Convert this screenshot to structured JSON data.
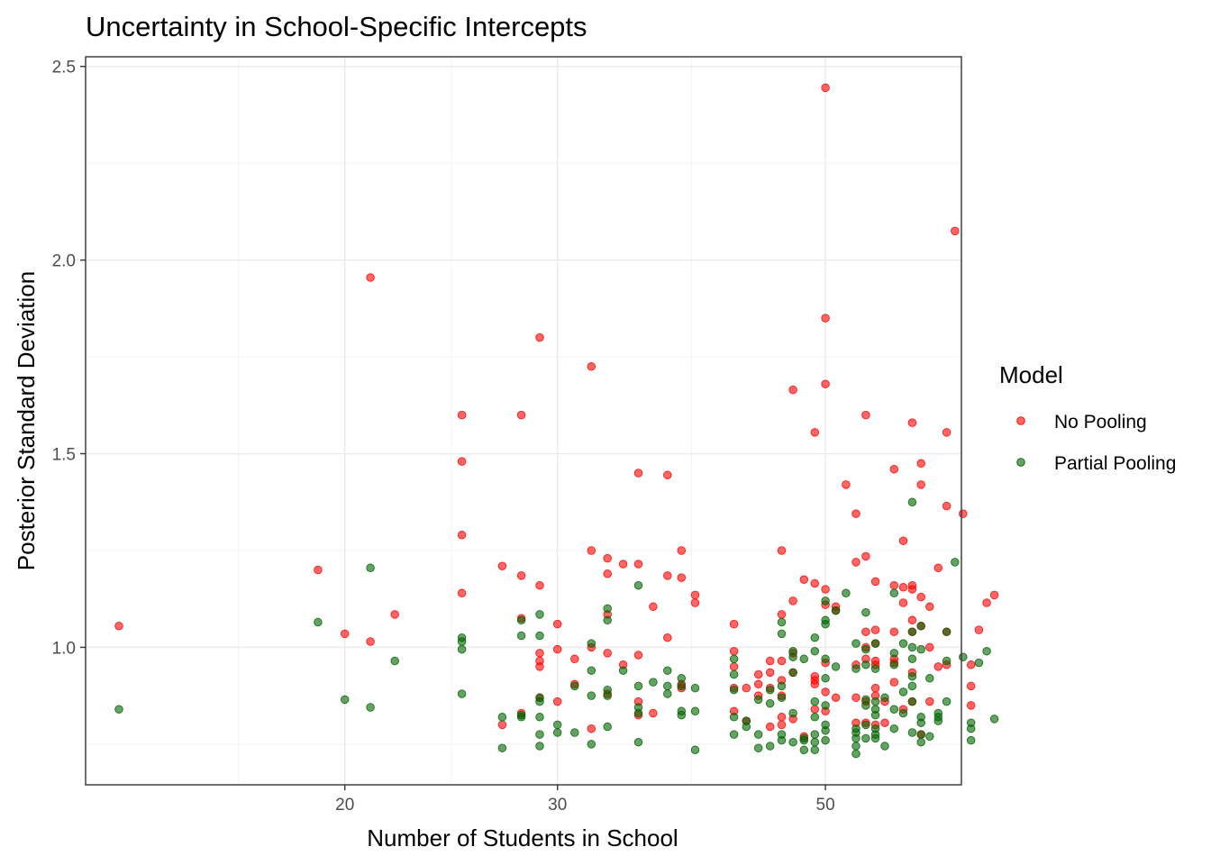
{
  "chart_data": {
    "type": "scatter",
    "title": "Uncertainty in School-Specific Intercepts",
    "xlabel": "Number of Students in School",
    "ylabel": "Posterior Standard Deviation",
    "x_scale": "log10",
    "xlim": [
      12.2,
      64.8
    ],
    "ylim": [
      0.645,
      2.525
    ],
    "x_ticks": [
      20,
      30,
      50
    ],
    "x_tick_labels": [
      "20",
      "30",
      "50"
    ],
    "y_ticks": [
      1.0,
      1.5,
      2.0,
      2.5
    ],
    "y_tick_labels": [
      "1.0",
      "1.5",
      "2.0",
      "2.5"
    ],
    "legend": {
      "title": "Model",
      "position": "right"
    },
    "series": [
      {
        "name": "No Pooling",
        "color": "#ff0000",
        "points": [
          [
            13,
            1.055
          ],
          [
            19,
            1.2
          ],
          [
            20,
            1.035
          ],
          [
            21,
            1.955
          ],
          [
            21,
            1.015
          ],
          [
            22,
            1.085
          ],
          [
            25,
            1.6
          ],
          [
            25,
            1.48
          ],
          [
            25,
            1.29
          ],
          [
            25,
            1.14
          ],
          [
            27,
            1.21
          ],
          [
            27,
            0.8
          ],
          [
            28,
            1.6
          ],
          [
            28,
            1.185
          ],
          [
            28,
            1.075
          ],
          [
            28,
            0.83
          ],
          [
            29,
            1.8
          ],
          [
            29,
            1.16
          ],
          [
            29,
            0.985
          ],
          [
            29,
            0.965
          ],
          [
            29,
            0.95
          ],
          [
            29,
            0.87
          ],
          [
            30,
            1.06
          ],
          [
            30,
            0.995
          ],
          [
            30,
            0.86
          ],
          [
            31,
            0.97
          ],
          [
            31,
            0.905
          ],
          [
            32,
            1.725
          ],
          [
            32,
            1.25
          ],
          [
            32,
            1.0
          ],
          [
            32,
            0.79
          ],
          [
            33,
            1.23
          ],
          [
            33,
            1.19
          ],
          [
            33,
            1.085
          ],
          [
            33,
            0.985
          ],
          [
            33,
            0.88
          ],
          [
            34,
            1.215
          ],
          [
            34,
            0.955
          ],
          [
            35,
            1.45
          ],
          [
            35,
            1.215
          ],
          [
            35,
            0.98
          ],
          [
            35,
            0.86
          ],
          [
            35,
            0.825
          ],
          [
            36,
            1.105
          ],
          [
            36,
            0.83
          ],
          [
            37,
            1.445
          ],
          [
            37,
            1.185
          ],
          [
            37,
            1.025
          ],
          [
            38,
            1.25
          ],
          [
            38,
            1.18
          ],
          [
            38,
            0.905
          ],
          [
            38,
            0.895
          ],
          [
            39,
            1.135
          ],
          [
            39,
            1.115
          ],
          [
            42,
            1.06
          ],
          [
            42,
            0.99
          ],
          [
            42,
            0.95
          ],
          [
            42,
            0.895
          ],
          [
            42,
            0.835
          ],
          [
            43,
            0.895
          ],
          [
            43,
            0.81
          ],
          [
            44,
            0.93
          ],
          [
            44,
            0.905
          ],
          [
            44,
            0.875
          ],
          [
            45,
            0.965
          ],
          [
            45,
            0.935
          ],
          [
            45,
            0.895
          ],
          [
            45,
            0.795
          ],
          [
            46,
            1.25
          ],
          [
            46,
            1.085
          ],
          [
            46,
            0.965
          ],
          [
            46,
            0.915
          ],
          [
            46,
            0.875
          ],
          [
            46,
            0.82
          ],
          [
            46,
            0.8
          ],
          [
            47,
            1.665
          ],
          [
            47,
            1.12
          ],
          [
            47,
            0.985
          ],
          [
            47,
            0.935
          ],
          [
            47,
            0.815
          ],
          [
            48,
            1.175
          ],
          [
            48,
            0.77
          ],
          [
            49,
            1.555
          ],
          [
            49,
            1.165
          ],
          [
            49,
            0.925
          ],
          [
            49,
            0.915
          ],
          [
            49,
            0.905
          ],
          [
            49,
            0.84
          ],
          [
            50,
            2.445
          ],
          [
            50,
            1.85
          ],
          [
            50,
            1.68
          ],
          [
            50,
            1.15
          ],
          [
            50,
            1.11
          ],
          [
            50,
            0.96
          ],
          [
            50,
            0.885
          ],
          [
            50,
            0.835
          ],
          [
            51,
            1.105
          ],
          [
            51,
            1.095
          ],
          [
            51,
            0.87
          ],
          [
            52,
            1.42
          ],
          [
            53,
            1.345
          ],
          [
            53,
            1.22
          ],
          [
            53,
            0.955
          ],
          [
            53,
            0.87
          ],
          [
            53,
            0.805
          ],
          [
            54,
            1.6
          ],
          [
            54,
            1.235
          ],
          [
            54,
            1.04
          ],
          [
            54,
            1.0
          ],
          [
            54,
            0.97
          ],
          [
            54,
            0.86
          ],
          [
            54,
            0.805
          ],
          [
            55,
            1.17
          ],
          [
            55,
            1.045
          ],
          [
            55,
            1.01
          ],
          [
            55,
            0.965
          ],
          [
            55,
            0.955
          ],
          [
            55,
            0.895
          ],
          [
            55,
            0.875
          ],
          [
            55,
            0.8
          ],
          [
            56,
            0.86
          ],
          [
            56,
            0.805
          ],
          [
            57,
            1.46
          ],
          [
            57,
            1.16
          ],
          [
            57,
            1.04
          ],
          [
            57,
            0.97
          ],
          [
            57,
            0.96
          ],
          [
            57,
            0.91
          ],
          [
            58,
            1.275
          ],
          [
            58,
            1.155
          ],
          [
            58,
            1.115
          ],
          [
            58,
            0.84
          ],
          [
            59,
            1.58
          ],
          [
            59,
            1.16
          ],
          [
            59,
            1.15
          ],
          [
            59,
            1.07
          ],
          [
            59,
            1.04
          ],
          [
            59,
            0.935
          ],
          [
            59,
            0.86
          ],
          [
            60,
            1.475
          ],
          [
            60,
            1.42
          ],
          [
            60,
            1.13
          ],
          [
            60,
            1.055
          ],
          [
            60,
            0.775
          ],
          [
            61,
            1.105
          ],
          [
            61,
            1.0
          ],
          [
            61,
            0.86
          ],
          [
            62,
            1.205
          ],
          [
            62,
            0.95
          ],
          [
            63,
            1.555
          ],
          [
            63,
            1.365
          ],
          [
            63,
            1.04
          ],
          [
            63,
            0.955
          ],
          [
            64,
            2.075
          ],
          [
            65,
            1.345
          ],
          [
            66,
            0.955
          ],
          [
            66,
            0.9
          ],
          [
            66,
            0.85
          ],
          [
            67,
            1.045
          ],
          [
            68,
            1.115
          ],
          [
            69,
            1.135
          ]
        ]
      },
      {
        "name": "Partial Pooling",
        "color": "#006400",
        "points": [
          [
            13,
            0.84
          ],
          [
            19,
            1.065
          ],
          [
            20,
            0.865
          ],
          [
            21,
            1.205
          ],
          [
            21,
            0.845
          ],
          [
            22,
            0.965
          ],
          [
            25,
            1.025
          ],
          [
            25,
            1.015
          ],
          [
            25,
            0.995
          ],
          [
            25,
            0.88
          ],
          [
            27,
            0.82
          ],
          [
            27,
            0.74
          ],
          [
            28,
            1.07
          ],
          [
            28,
            1.03
          ],
          [
            28,
            0.82
          ],
          [
            28,
            0.825
          ],
          [
            29,
            1.085
          ],
          [
            29,
            1.03
          ],
          [
            29,
            0.87
          ],
          [
            29,
            0.86
          ],
          [
            29,
            0.82
          ],
          [
            29,
            0.775
          ],
          [
            29,
            0.745
          ],
          [
            30,
            0.8
          ],
          [
            30,
            0.78
          ],
          [
            31,
            0.9
          ],
          [
            31,
            0.78
          ],
          [
            32,
            1.01
          ],
          [
            32,
            0.94
          ],
          [
            32,
            0.875
          ],
          [
            32,
            0.75
          ],
          [
            33,
            1.1
          ],
          [
            33,
            1.07
          ],
          [
            33,
            0.89
          ],
          [
            33,
            0.875
          ],
          [
            33,
            0.795
          ],
          [
            34,
            0.94
          ],
          [
            35,
            1.16
          ],
          [
            35,
            0.9
          ],
          [
            35,
            0.845
          ],
          [
            35,
            0.83
          ],
          [
            35,
            0.755
          ],
          [
            36,
            0.91
          ],
          [
            37,
            0.94
          ],
          [
            37,
            0.9
          ],
          [
            37,
            0.88
          ],
          [
            38,
            0.92
          ],
          [
            38,
            0.9
          ],
          [
            38,
            0.835
          ],
          [
            38,
            0.825
          ],
          [
            39,
            0.895
          ],
          [
            39,
            0.835
          ],
          [
            39,
            0.735
          ],
          [
            42,
            0.97
          ],
          [
            42,
            0.93
          ],
          [
            42,
            0.89
          ],
          [
            42,
            0.82
          ],
          [
            42,
            0.775
          ],
          [
            43,
            0.81
          ],
          [
            43,
            0.795
          ],
          [
            44,
            0.865
          ],
          [
            44,
            0.775
          ],
          [
            44,
            0.74
          ],
          [
            45,
            0.89
          ],
          [
            45,
            0.855
          ],
          [
            45,
            0.745
          ],
          [
            46,
            1.065
          ],
          [
            46,
            1.035
          ],
          [
            46,
            0.9
          ],
          [
            46,
            0.87
          ],
          [
            46,
            0.76
          ],
          [
            46,
            0.775
          ],
          [
            47,
            0.99
          ],
          [
            47,
            0.975
          ],
          [
            47,
            0.935
          ],
          [
            47,
            0.83
          ],
          [
            47,
            0.755
          ],
          [
            48,
            0.97
          ],
          [
            48,
            0.765
          ],
          [
            48,
            0.735
          ],
          [
            48,
            0.76
          ],
          [
            49,
            1.025
          ],
          [
            49,
            0.99
          ],
          [
            49,
            0.86
          ],
          [
            49,
            0.82
          ],
          [
            49,
            0.775
          ],
          [
            49,
            0.755
          ],
          [
            49,
            0.735
          ],
          [
            50,
            1.12
          ],
          [
            50,
            1.06
          ],
          [
            50,
            1.07
          ],
          [
            50,
            0.97
          ],
          [
            50,
            0.92
          ],
          [
            50,
            0.85
          ],
          [
            50,
            0.8
          ],
          [
            50,
            0.785
          ],
          [
            50,
            0.76
          ],
          [
            51,
            1.095
          ],
          [
            51,
            0.95
          ],
          [
            52,
            1.14
          ],
          [
            53,
            1.01
          ],
          [
            53,
            0.945
          ],
          [
            53,
            0.79
          ],
          [
            53,
            0.78
          ],
          [
            53,
            0.765
          ],
          [
            53,
            0.745
          ],
          [
            53,
            0.725
          ],
          [
            54,
            1.09
          ],
          [
            54,
            0.995
          ],
          [
            54,
            0.955
          ],
          [
            54,
            0.865
          ],
          [
            54,
            0.85
          ],
          [
            54,
            0.8
          ],
          [
            54,
            0.765
          ],
          [
            55,
            1.01
          ],
          [
            55,
            0.945
          ],
          [
            55,
            0.86
          ],
          [
            55,
            0.84
          ],
          [
            55,
            0.825
          ],
          [
            55,
            0.79
          ],
          [
            55,
            0.775
          ],
          [
            55,
            0.765
          ],
          [
            56,
            0.87
          ],
          [
            56,
            0.745
          ],
          [
            57,
            1.14
          ],
          [
            57,
            0.985
          ],
          [
            57,
            0.955
          ],
          [
            57,
            0.84
          ],
          [
            57,
            0.79
          ],
          [
            58,
            1.01
          ],
          [
            58,
            0.885
          ],
          [
            58,
            0.83
          ],
          [
            59,
            1.375
          ],
          [
            59,
            1.04
          ],
          [
            59,
            1.0
          ],
          [
            59,
            0.97
          ],
          [
            59,
            0.925
          ],
          [
            59,
            0.9
          ],
          [
            59,
            0.86
          ],
          [
            59,
            0.78
          ],
          [
            60,
            1.055
          ],
          [
            60,
            0.995
          ],
          [
            60,
            0.82
          ],
          [
            60,
            0.805
          ],
          [
            60,
            0.775
          ],
          [
            60,
            0.755
          ],
          [
            61,
            0.92
          ],
          [
            61,
            0.77
          ],
          [
            62,
            0.82
          ],
          [
            62,
            0.81
          ],
          [
            62,
            0.83
          ],
          [
            63,
            1.04
          ],
          [
            63,
            0.965
          ],
          [
            63,
            0.86
          ],
          [
            64,
            1.22
          ],
          [
            65,
            0.975
          ],
          [
            66,
            0.805
          ],
          [
            66,
            0.79
          ],
          [
            66,
            0.76
          ],
          [
            67,
            0.96
          ],
          [
            68,
            0.99
          ],
          [
            69,
            0.815
          ]
        ]
      }
    ]
  }
}
